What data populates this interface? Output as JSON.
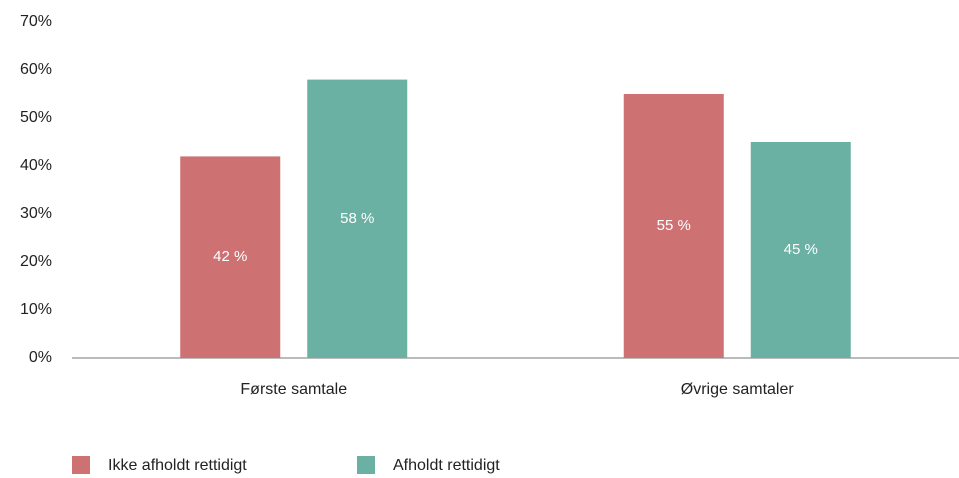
{
  "chart_data": {
    "type": "bar",
    "categories": [
      "Første samtale",
      "Øvrige samtaler"
    ],
    "series": [
      {
        "name": "Ikke afholdt rettidigt",
        "color": "#cd7173",
        "values": [
          42,
          55
        ],
        "value_labels": [
          "42 %",
          "55 %"
        ]
      },
      {
        "name": "Afholdt rettidigt",
        "color": "#6ab0a3",
        "values": [
          58,
          45
        ],
        "value_labels": [
          "58 %",
          "45 %"
        ]
      }
    ],
    "ylim": [
      0,
      70
    ],
    "yticks": [
      {
        "value": 0,
        "label": "0%"
      },
      {
        "value": 10,
        "label": "10%"
      },
      {
        "value": 20,
        "label": "20%"
      },
      {
        "value": 30,
        "label": "30%"
      },
      {
        "value": 40,
        "label": "40%"
      },
      {
        "value": 50,
        "label": "50%"
      },
      {
        "value": 60,
        "label": "60%"
      },
      {
        "value": 70,
        "label": "70%"
      }
    ],
    "grid": false,
    "legend": "bottom-left"
  }
}
